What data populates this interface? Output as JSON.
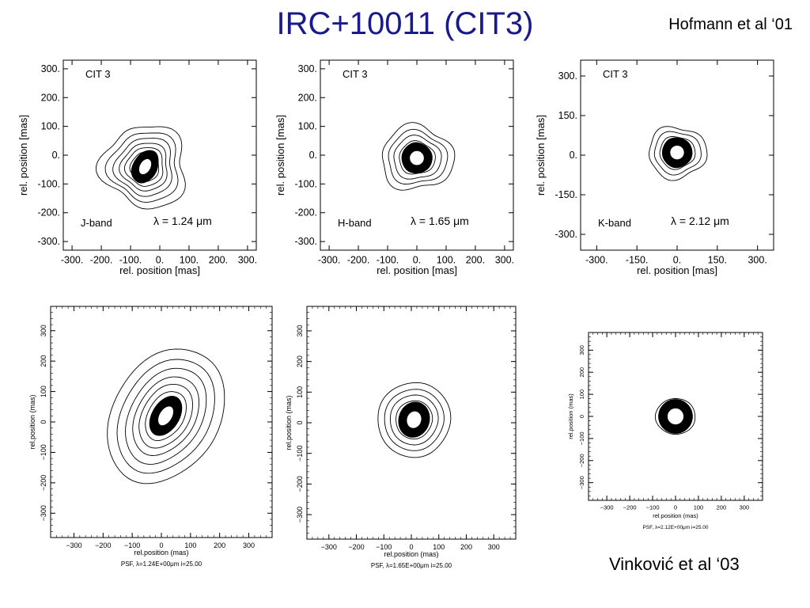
{
  "slide": {
    "title": "IRC+10011 (CIT3)",
    "ref_top": "Hofmann et al ‘01",
    "ref_bottom": "Vinković et al ‘03"
  },
  "chart_data": [
    {
      "type": "contour",
      "label": "CIT 3",
      "band": "J-band",
      "wavelength": "λ = 1.24 μm",
      "xlabel": "rel. position [mas]",
      "ylabel": "rel. position [mas]",
      "xlim": [
        -330,
        330
      ],
      "ylim": [
        -330,
        330
      ],
      "xticks": [
        "-300.",
        "-200.",
        "-100.",
        "0.",
        "100.",
        "200.",
        "300."
      ],
      "yticks": [
        "300.",
        "200.",
        "100.",
        "0.",
        "-100.",
        "-200.",
        "-300."
      ],
      "center": [
        -50,
        -40
      ],
      "core_radius": [
        22,
        32
      ]
    },
    {
      "type": "contour",
      "label": "CIT 3",
      "band": "H-band",
      "wavelength": "λ = 1.65 μm",
      "xlabel": "rel. position [mas]",
      "ylabel": "rel. position [mas]",
      "xlim": [
        -330,
        330
      ],
      "ylim": [
        -330,
        330
      ],
      "xticks": [
        "-300.",
        "-200.",
        "-100.",
        "0.",
        "100.",
        "200.",
        "300."
      ],
      "yticks": [
        "300.",
        "200.",
        "100.",
        "0.",
        "-100.",
        "-200.",
        "-300."
      ],
      "center": [
        0,
        -10
      ],
      "core_radius": [
        28,
        28
      ]
    },
    {
      "type": "contour",
      "label": "CIT 3",
      "band": "K-band",
      "wavelength": "λ = 2.12 μm",
      "xlabel": "rel. position [mas]",
      "ylabel": "rel. position [mas]",
      "xlim": [
        -360,
        360
      ],
      "ylim": [
        -360,
        360
      ],
      "xticks": [
        "-300.",
        "-150.",
        "0.",
        "150.",
        "300."
      ],
      "yticks": [
        "300.",
        "150.",
        "0.",
        "-150.",
        "-300."
      ],
      "center": [
        0,
        10
      ],
      "core_radius": [
        30,
        30
      ]
    },
    {
      "type": "contour",
      "label": "",
      "caption": "PSF, λ=1.24E+00μm   i=25.00",
      "xlabel": "rel.position (mas)",
      "ylabel": "rel.position (mas)",
      "xlim": [
        -380,
        380
      ],
      "ylim": [
        -380,
        380
      ],
      "xticks": [
        "−300",
        "−200",
        "−100",
        "0",
        "100",
        "200",
        "300"
      ],
      "yticks": [
        "300",
        "200",
        "100",
        "0",
        "−100",
        "−200",
        "−300"
      ],
      "center": [
        15,
        20
      ],
      "core_radius": [
        25,
        40
      ]
    },
    {
      "type": "contour",
      "label": "",
      "caption": "PSF, λ=1.65E+00μm   i=25.00",
      "xlabel": "rel.position (mas)",
      "ylabel": "rel.position (mas)",
      "xlim": [
        -380,
        380
      ],
      "ylim": [
        -380,
        380
      ],
      "xticks": [
        "−300",
        "−200",
        "−100",
        "0",
        "100",
        "200",
        "300"
      ],
      "yticks": [
        "300",
        "200",
        "100",
        "0",
        "−100",
        "−200",
        "−300"
      ],
      "center": [
        10,
        10
      ],
      "core_radius": [
        30,
        35
      ]
    },
    {
      "type": "contour",
      "label": "",
      "caption": "PSF, λ=2.12E+00μm   i=25.00",
      "xlabel": "rel.position (mas)",
      "ylabel": "rel.position (mas)",
      "xlim": [
        -380,
        380
      ],
      "ylim": [
        -380,
        380
      ],
      "xticks": [
        "−300",
        "−200",
        "−100",
        "0",
        "100",
        "200",
        "300"
      ],
      "yticks": [
        "300",
        "200",
        "100",
        "0",
        "−100",
        "−200",
        "−300"
      ],
      "center": [
        0,
        0
      ],
      "core_radius": [
        40,
        40
      ]
    }
  ]
}
